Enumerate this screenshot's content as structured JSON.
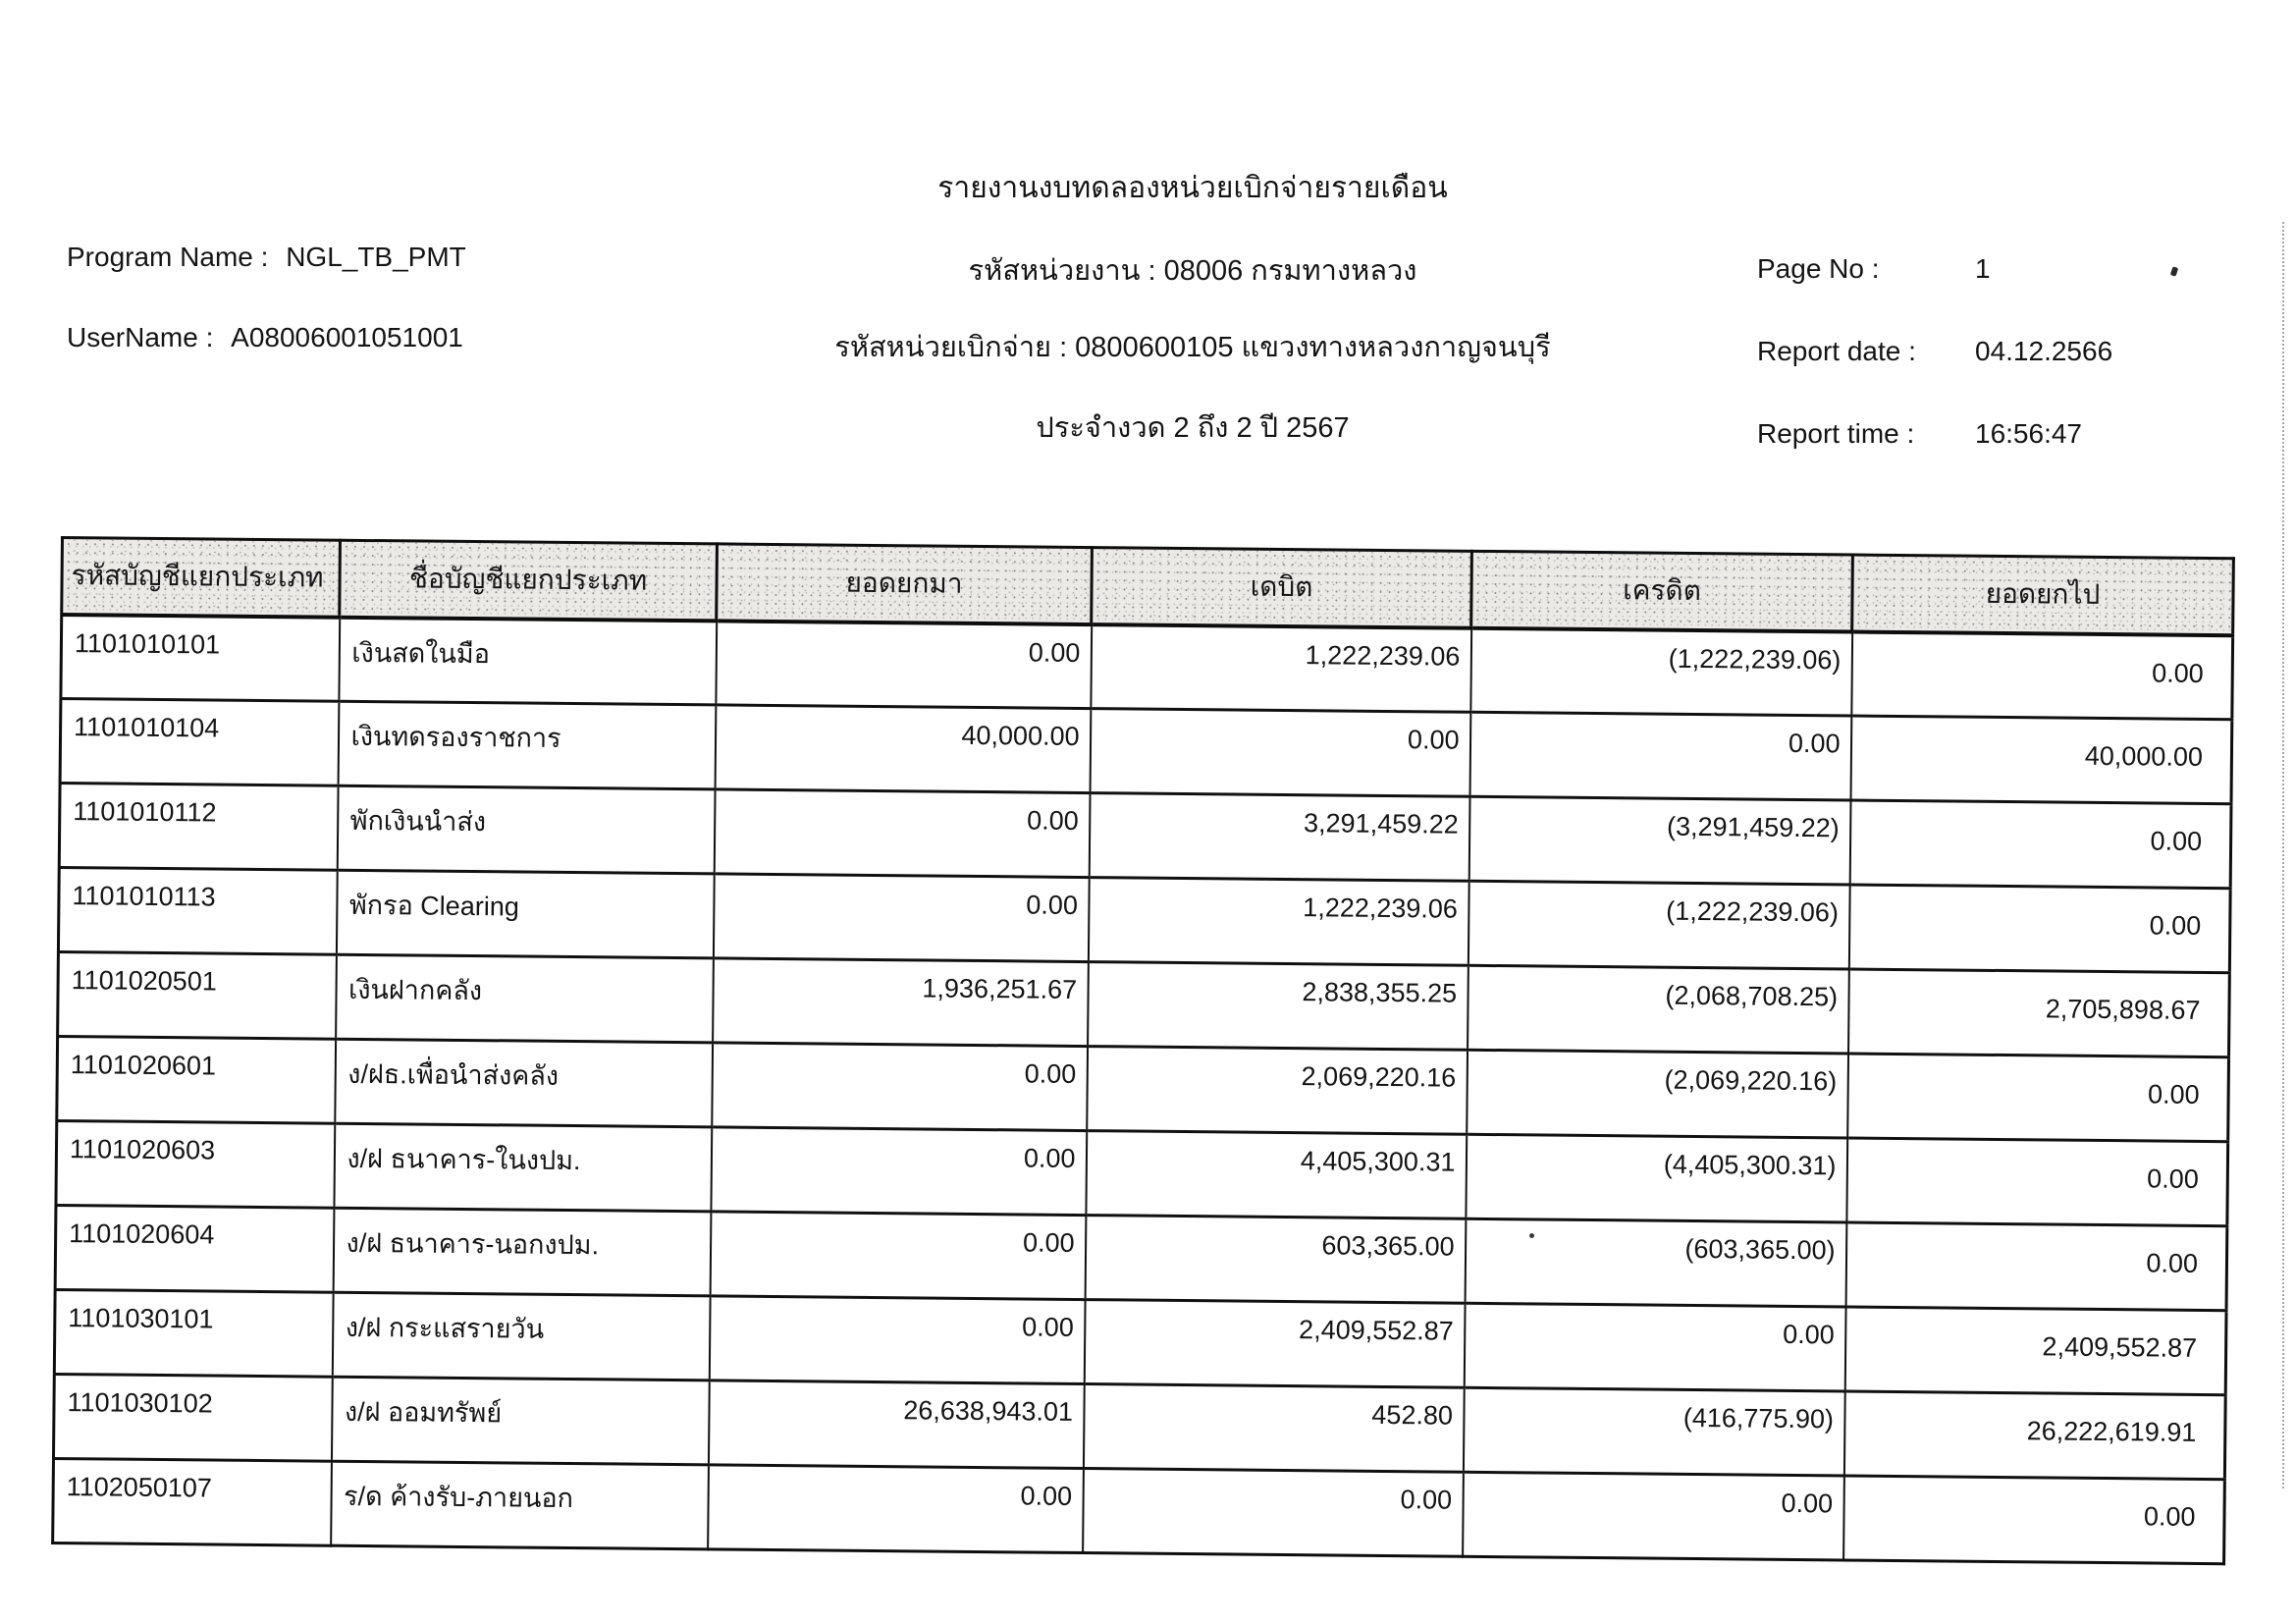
{
  "header": {
    "title": "รายงานงบทดลองหน่วยเบิกจ่ายรายเดือน",
    "program_name": {
      "label": "Program Name :",
      "value": "NGL_TB_PMT"
    },
    "user_name": {
      "label": "UserName :",
      "value": "A08006001051001"
    },
    "agency_line": "รหัสหน่วยงาน : 08006 กรมทางหลวง",
    "disbursement_unit_line": "รหัสหน่วยเบิกจ่าย : 0800600105 แขวงทางหลวงกาญจนบุรี",
    "period_line": "ประจำงวด 2 ถึง 2 ปี 2567",
    "page_no": {
      "label": "Page No :",
      "value": "1"
    },
    "report_date": {
      "label": "Report date :",
      "value": "04.12.2566"
    },
    "report_time": {
      "label": "Report time :",
      "value": "16:56:47"
    }
  },
  "table": {
    "headers": [
      "รหัสบัญชีแยกประเภท",
      "ชื่อบัญชีแยกประเภท",
      "ยอดยกมา",
      "เดบิต",
      "เครดิต",
      "ยอดยกไป"
    ],
    "rows": [
      [
        "1101010101",
        "เงินสดในมือ",
        "0.00",
        "1,222,239.06",
        "(1,222,239.06)",
        "0.00"
      ],
      [
        "1101010104",
        "เงินทดรองราชการ",
        "40,000.00",
        "0.00",
        "0.00",
        "40,000.00"
      ],
      [
        "1101010112",
        "พักเงินนำส่ง",
        "0.00",
        "3,291,459.22",
        "(3,291,459.22)",
        "0.00"
      ],
      [
        "1101010113",
        "พักรอ Clearing",
        "0.00",
        "1,222,239.06",
        "(1,222,239.06)",
        "0.00"
      ],
      [
        "1101020501",
        "เงินฝากคลัง",
        "1,936,251.67",
        "2,838,355.25",
        "(2,068,708.25)",
        "2,705,898.67"
      ],
      [
        "1101020601",
        "ง/ฝธ.เพื่อนำส่งคลัง",
        "0.00",
        "2,069,220.16",
        "(2,069,220.16)",
        "0.00"
      ],
      [
        "1101020603",
        "ง/ฝ ธนาคาร-ในงปม.",
        "0.00",
        "4,405,300.31",
        "(4,405,300.31)",
        "0.00"
      ],
      [
        "1101020604",
        "ง/ฝ ธนาคาร-นอกงปม.",
        "0.00",
        "603,365.00",
        "(603,365.00)",
        "0.00"
      ],
      [
        "1101030101",
        "ง/ฝ กระแสรายวัน",
        "0.00",
        "2,409,552.87",
        "0.00",
        "2,409,552.87"
      ],
      [
        "1101030102",
        "ง/ฝ ออมทรัพย์",
        "26,638,943.01",
        "452.80",
        "(416,775.90)",
        "26,222,619.91"
      ],
      [
        "1102050107",
        "ร/ด ค้างรับ-ภายนอก",
        "0.00",
        "0.00",
        "0.00",
        "0.00"
      ]
    ]
  }
}
